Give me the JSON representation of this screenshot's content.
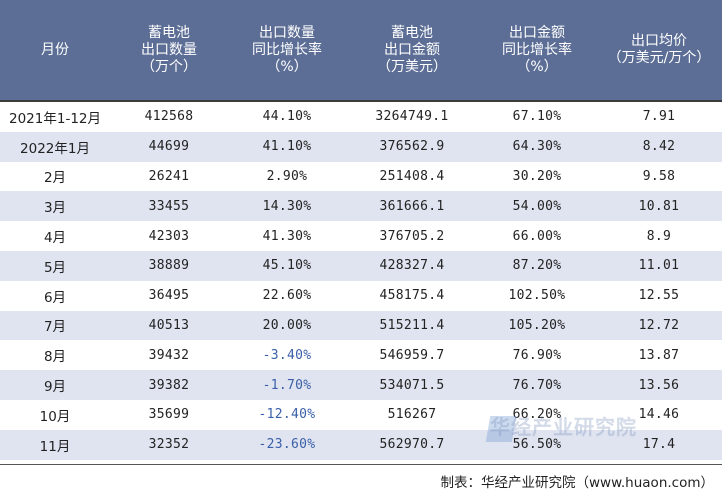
{
  "table": {
    "headers": [
      [
        "月份"
      ],
      [
        "蓄电池",
        "出口数量",
        "（万个）"
      ],
      [
        "出口数量",
        "同比增长率",
        "（%）"
      ],
      [
        "蓄电池",
        "出口金额",
        "（万美元）"
      ],
      [
        "出口金额",
        "同比增长率",
        "（%）"
      ],
      [
        "出口均价",
        "（万美元/万个）"
      ]
    ],
    "rows": [
      [
        "2021年1-12月",
        "412568",
        "44.10%",
        "3264749.1",
        "67.10%",
        "7.91"
      ],
      [
        "2022年1月",
        "44699",
        "41.10%",
        "376562.9",
        "64.30%",
        "8.42"
      ],
      [
        "2月",
        "26241",
        "2.90%",
        "251408.4",
        "30.20%",
        "9.58"
      ],
      [
        "3月",
        "33455",
        "14.30%",
        "361666.1",
        "54.00%",
        "10.81"
      ],
      [
        "4月",
        "42303",
        "41.30%",
        "376705.2",
        "66.00%",
        "8.9"
      ],
      [
        "5月",
        "38889",
        "45.10%",
        "428327.4",
        "87.20%",
        "11.01"
      ],
      [
        "6月",
        "36495",
        "22.60%",
        "458175.4",
        "102.50%",
        "12.55"
      ],
      [
        "7月",
        "40513",
        "20.00%",
        "515211.4",
        "105.20%",
        "12.72"
      ],
      [
        "8月",
        "39432",
        "-3.40%",
        "546959.7",
        "76.90%",
        "13.87"
      ],
      [
        "9月",
        "39382",
        "-1.70%",
        "534071.5",
        "76.70%",
        "13.56"
      ],
      [
        "10月",
        "35699",
        "-12.40%",
        "516267",
        "66.20%",
        "14.46"
      ],
      [
        "11月",
        "32352",
        "-23.60%",
        "562970.7",
        "56.50%",
        "17.4"
      ]
    ]
  },
  "source": "制表：华经产业研究院（www.huaon.com）",
  "watermark": "华经产业研究院",
  "colors": {
    "header_bg": "#5c6e96",
    "stripe": "#dfe4f0",
    "negative": "#3a5fa8"
  }
}
